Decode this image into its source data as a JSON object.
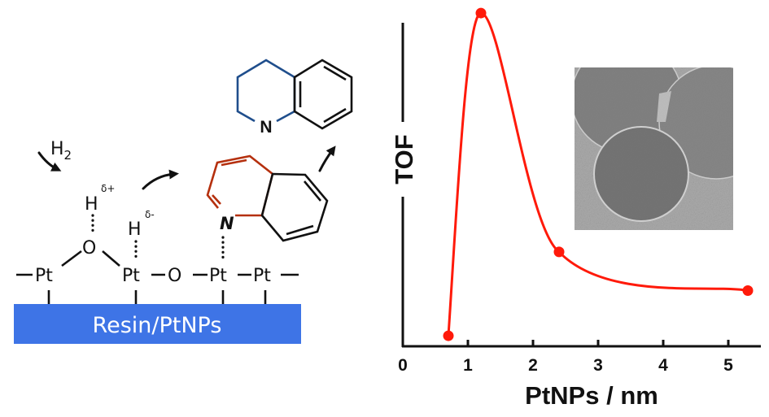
{
  "scheme": {
    "reactant_gas": "H",
    "reactant_gas_subscript": "2",
    "hydrogen_label": "H",
    "charge_positive": "δ+",
    "charge_negative": "δ-",
    "platinum_label": "Pt",
    "oxygen_label": "O",
    "nitrogen_label": "N",
    "support_label": "Resin/PtNPs",
    "support_color": "#3e74e6",
    "quinoline_ring_color": "#b5300e",
    "product_ring_color": "#1f4e8c"
  },
  "chart_data": {
    "type": "line",
    "xlabel": "PtNPs / nm",
    "ylabel": "TOF",
    "xlim": [
      0,
      5.5
    ],
    "ylim": [
      0,
      1.05
    ],
    "x_ticks": [
      "0",
      "1",
      "2",
      "3",
      "4",
      "5"
    ],
    "y_ticks_labeled": false,
    "grid": false,
    "smooth": true,
    "series": [
      {
        "x": [
          0.7,
          1.2,
          2.4,
          5.3
        ],
        "y": [
          0.03,
          1.03,
          0.29,
          0.17
        ],
        "color": "#ff1a0a"
      }
    ],
    "inset": "TEM micrograph of resin spheres with Pt nanoparticles"
  }
}
